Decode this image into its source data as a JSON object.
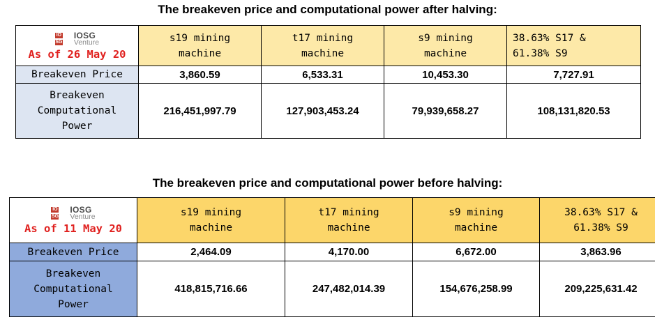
{
  "logo": {
    "mark": [
      "IO",
      "SG"
    ],
    "name": "IOSG",
    "sub": "Venture"
  },
  "tables": [
    {
      "title": "The breakeven price and computational power after halving:",
      "as_of": "As of 26 May 20",
      "columns": [
        [
          "s19 mining",
          "machine"
        ],
        [
          "t17 mining",
          "machine"
        ],
        [
          "s9 mining",
          "machine"
        ],
        [
          "38.63% S17 &",
          "61.38% S9"
        ]
      ],
      "row_labels": {
        "price": "Breakeven Price",
        "power": [
          "Breakeven",
          "Computational",
          "Power"
        ]
      },
      "price": [
        "3,860.59",
        "6,533.31",
        "10,453.30",
        "7,727.91"
      ],
      "power": [
        "216,451,997.79",
        "127,903,453.24",
        "79,939,658.27",
        "108,131,820.53"
      ]
    },
    {
      "title": "The breakeven price and computational power before halving:",
      "as_of": "As of 11 May 20",
      "columns": [
        [
          "s19 mining",
          "machine"
        ],
        [
          "t17 mining",
          "machine"
        ],
        [
          "s9 mining",
          "machine"
        ],
        [
          "38.63% S17 &",
          "61.38% S9"
        ]
      ],
      "row_labels": {
        "price": "Breakeven Price",
        "power": [
          "Breakeven",
          "Computational",
          "Power"
        ]
      },
      "price": [
        "2,464.09",
        "4,170.00",
        "6,672.00",
        "3,863.96"
      ],
      "power": [
        "418,815,716.66",
        "247,482,014.39",
        "154,676,258.99",
        "209,225,631.42"
      ]
    }
  ]
}
